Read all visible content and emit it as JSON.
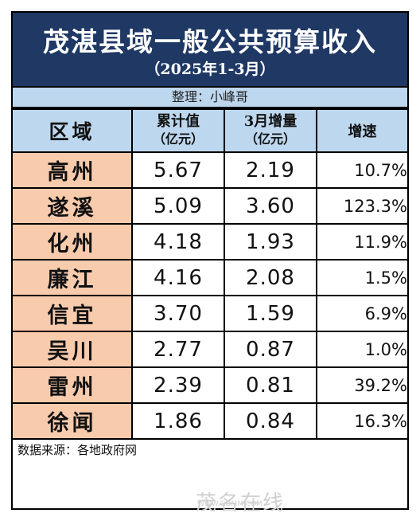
{
  "title": "茂湛县域一般公共预算收入",
  "subtitle": "（2025年1-3月）",
  "compiler": "整理：小峰哥",
  "headers": {
    "region": "区域",
    "cumulative_line1": "累计值",
    "cumulative_line2": "（亿元）",
    "march_line1": "3月增量",
    "march_line2": "（亿元）",
    "growth": "增速"
  },
  "rows": [
    {
      "region": "高州",
      "cumulative": "5.67",
      "march": "2.19",
      "growth": "10.7%"
    },
    {
      "region": "遂溪",
      "cumulative": "5.09",
      "march": "3.60",
      "growth": "123.3%"
    },
    {
      "region": "化州",
      "cumulative": "4.18",
      "march": "1.93",
      "growth": "11.9%"
    },
    {
      "region": "廉江",
      "cumulative": "4.16",
      "march": "2.08",
      "growth": "1.5%"
    },
    {
      "region": "信宜",
      "cumulative": "3.70",
      "march": "1.59",
      "growth": "6.9%"
    },
    {
      "region": "吴川",
      "cumulative": "2.77",
      "march": "0.87",
      "growth": "1.0%"
    },
    {
      "region": "雷州",
      "cumulative": "2.39",
      "march": "0.81",
      "growth": "39.2%"
    },
    {
      "region": "徐闻",
      "cumulative": "1.86",
      "march": "0.84",
      "growth": "16.3%"
    }
  ],
  "source": "数据来源：各地政府网",
  "watermark": {
    "text": "茂名在线",
    "url": "WWW.GDMM.COM"
  },
  "colors": {
    "title_band": "#1f3864",
    "header_band": "#bdd7ee",
    "region_cell": "#f8cbad"
  }
}
